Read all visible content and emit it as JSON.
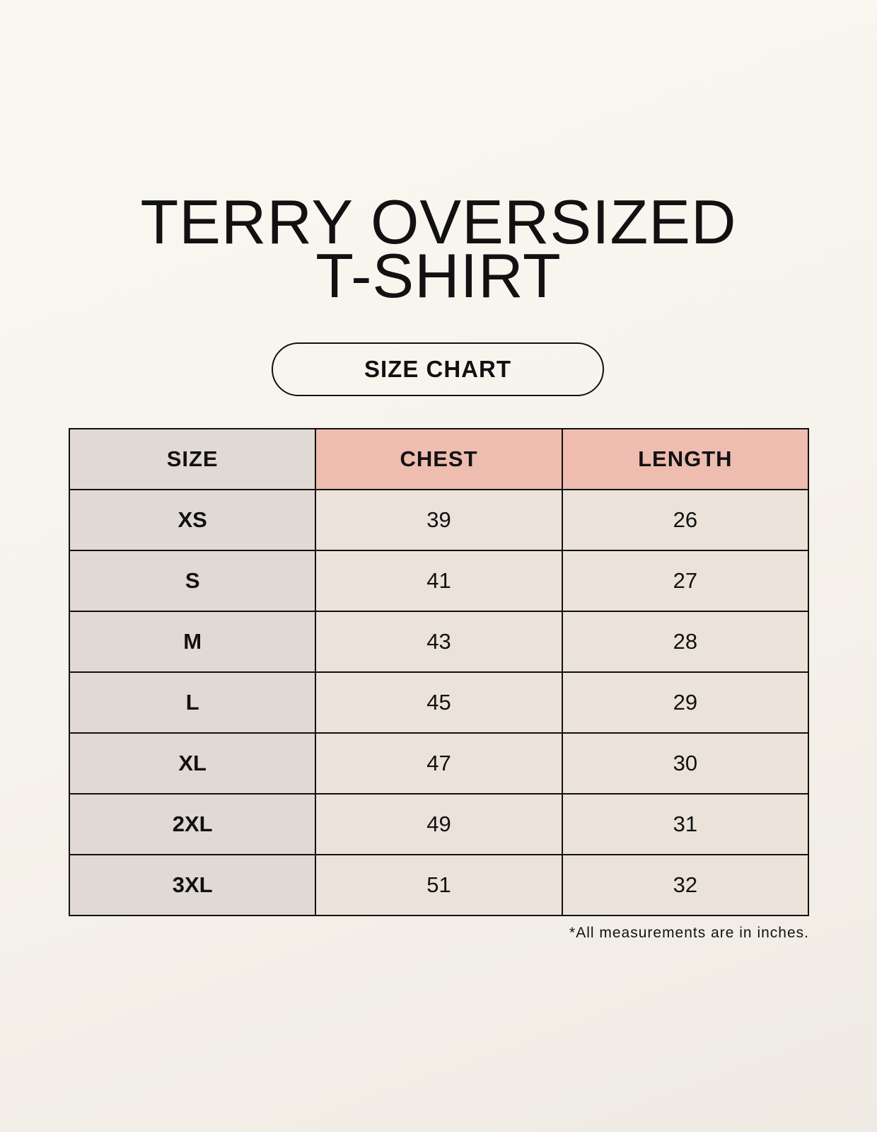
{
  "title_lines": [
    "TERRY OVERSIZED",
    "T-SHIRT"
  ],
  "badge": "SIZE CHART",
  "table": {
    "headers": [
      "SIZE",
      "CHEST",
      "LENGTH"
    ],
    "rows": [
      [
        "XS",
        "39",
        "26"
      ],
      [
        "S",
        "41",
        "27"
      ],
      [
        "M",
        "43",
        "28"
      ],
      [
        "L",
        "45",
        "29"
      ],
      [
        "XL",
        "47",
        "30"
      ],
      [
        "2XL",
        "49",
        "31"
      ],
      [
        "3XL",
        "51",
        "32"
      ]
    ]
  },
  "footnote": "*All measurements are in inches.",
  "colors": {
    "size_column": "#e0d9d4",
    "header_accent": "#eebdb0",
    "cell": "#ebe3d9",
    "background": "#f8f5ef"
  }
}
